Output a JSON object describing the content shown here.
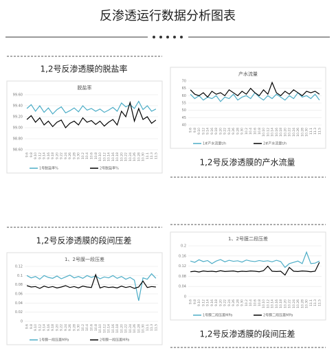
{
  "title": "反渗透运行数据分析图表",
  "sections": [
    {
      "caption": "1,2号反渗透膜的脱盐率"
    },
    {
      "caption": "1,2号反渗透膜的产水流量"
    },
    {
      "caption": "1,2号反渗透膜的段间压差"
    },
    {
      "caption": "1,2号反渗透膜的段间压差"
    }
  ],
  "chart_data": [
    {
      "type": "line",
      "title": "脱盐率",
      "legend": "bottom",
      "grid": true,
      "categories": [
        "9.6",
        "9.8",
        "9.10",
        "9.12",
        "9.14",
        "9.16",
        "9.18",
        "9.20",
        "9.22",
        "9.24",
        "9.26",
        "9.28",
        "9.30",
        "10.2",
        "10.4",
        "10.6",
        "10.8",
        "10.10",
        "10.12",
        "10.14",
        "10.16",
        "10.18",
        "10.20",
        "10.22",
        "10.24",
        "10.26",
        "10.28",
        "10.30",
        "11.1",
        "11.3",
        "11.5"
      ],
      "ylim": [
        98.6,
        99.6
      ],
      "yticks": [
        {
          "value": 98.6,
          "label": "98.60"
        },
        {
          "value": 98.8,
          "label": "98.80"
        },
        {
          "value": 99.0,
          "label": "99.00"
        },
        {
          "value": 99.2,
          "label": "99.20"
        },
        {
          "value": 99.4,
          "label": "99.40"
        },
        {
          "value": 99.6,
          "label": "99.60"
        }
      ],
      "series": [
        {
          "name": "1号脱盐率%",
          "color": "#4bacc6",
          "values": [
            99.35,
            99.42,
            99.3,
            99.4,
            99.28,
            99.36,
            99.25,
            99.33,
            99.38,
            99.27,
            99.31,
            99.36,
            99.29,
            99.4,
            99.32,
            99.35,
            99.3,
            99.34,
            99.28,
            99.32,
            99.37,
            99.3,
            99.45,
            99.38,
            99.42,
            99.35,
            99.48,
            99.33,
            99.4,
            99.3,
            99.34
          ]
        },
        {
          "name": "2号脱盐率%",
          "color": "#000000",
          "values": [
            99.15,
            99.22,
            99.1,
            99.18,
            99.05,
            99.12,
            99.02,
            99.1,
            99.14,
            99.0,
            99.08,
            99.12,
            99.05,
            99.18,
            99.1,
            99.13,
            99.06,
            99.12,
            99.03,
            99.1,
            99.15,
            99.05,
            99.3,
            99.2,
            99.46,
            99.12,
            99.35,
            99.15,
            99.2,
            99.08,
            99.14
          ]
        }
      ]
    },
    {
      "type": "line",
      "title": "产水流量",
      "legend": "bottom",
      "grid": true,
      "categories": [
        "9.6",
        "9.8",
        "9.10",
        "9.12",
        "9.14",
        "9.16",
        "9.18",
        "9.20",
        "9.22",
        "9.24",
        "9.26",
        "9.28",
        "9.30",
        "10.2",
        "10.4",
        "10.6",
        "10.8",
        "10.10",
        "10.12",
        "10.14",
        "10.16",
        "10.18",
        "10.20",
        "10.22",
        "10.24",
        "10.26",
        "10.28",
        "10.30",
        "11.1",
        "11.3",
        "11.5"
      ],
      "ylim": [
        40,
        70
      ],
      "yticks": [
        40,
        45,
        50,
        55,
        60,
        65,
        70
      ],
      "series": [
        {
          "name": "1#产水流量t/h",
          "color": "#4bacc6",
          "values": [
            61,
            58,
            60,
            57,
            59,
            58,
            60,
            56,
            59,
            58,
            61,
            57,
            59,
            60,
            58,
            62,
            59,
            57,
            60,
            58,
            61,
            59,
            57,
            60,
            58,
            62,
            59,
            60,
            58,
            61,
            57
          ]
        },
        {
          "name": "2#产水流量t/h",
          "color": "#000000",
          "values": [
            64,
            61,
            60,
            62,
            59,
            63,
            61,
            62,
            60,
            64,
            62,
            60,
            63,
            61,
            65,
            62,
            60,
            64,
            61,
            69,
            62,
            60,
            63,
            61,
            64,
            62,
            60,
            63,
            62,
            63,
            61
          ]
        }
      ]
    },
    {
      "type": "line",
      "title": "1、2号膜一段压差",
      "legend": "bottom",
      "grid": true,
      "categories": [
        "9.6",
        "9.8",
        "9.10",
        "9.12",
        "9.14",
        "9.16",
        "9.18",
        "9.20",
        "9.22",
        "9.24",
        "9.26",
        "9.28",
        "9.30",
        "10.2",
        "10.4",
        "10.6",
        "10.8",
        "10.10",
        "10.12",
        "10.14",
        "10.16",
        "10.18",
        "10.20",
        "10.22",
        "10.24",
        "10.26",
        "10.28",
        "10.30",
        "11.1",
        "11.3",
        "11.5"
      ],
      "ylim": [
        0,
        0.12
      ],
      "yticks": [
        0,
        0.02,
        0.04,
        0.06,
        0.08,
        0.1,
        0.12
      ],
      "series": [
        {
          "name": "1号膜一段压差MPa",
          "color": "#4bacc6",
          "values": [
            0.1,
            0.095,
            0.098,
            0.092,
            0.1,
            0.096,
            0.094,
            0.099,
            0.093,
            0.097,
            0.101,
            0.095,
            0.098,
            0.094,
            0.1,
            0.096,
            0.099,
            0.093,
            0.097,
            0.095,
            0.1,
            0.094,
            0.098,
            0.092,
            0.096,
            0.09,
            0.045,
            0.095,
            0.092,
            0.104,
            0.094
          ]
        },
        {
          "name": "2号膜一段压差MPa",
          "color": "#000000",
          "values": [
            0.078,
            0.075,
            0.076,
            0.072,
            0.077,
            0.074,
            0.076,
            0.073,
            0.075,
            0.078,
            0.074,
            0.076,
            0.073,
            0.077,
            0.075,
            0.074,
            0.102,
            0.073,
            0.076,
            0.074,
            0.075,
            0.073,
            0.077,
            0.074,
            0.076,
            0.072,
            0.075,
            0.088,
            0.074,
            0.076,
            0.075
          ]
        }
      ]
    },
    {
      "type": "line",
      "title": "1、2号膜二段压差",
      "legend": "bottom",
      "grid": true,
      "categories": [
        "9.6",
        "9.8",
        "9.10",
        "9.12",
        "9.14",
        "9.16",
        "9.18",
        "9.20",
        "9.22",
        "9.24",
        "9.26",
        "9.28",
        "9.30",
        "10.2",
        "10.4",
        "10.6",
        "10.8",
        "10.10",
        "10.12",
        "10.14",
        "10.16",
        "10.18",
        "10.20",
        "10.22",
        "10.24",
        "10.26",
        "10.28",
        "10.30",
        "11.1",
        "11.3",
        "11.5"
      ],
      "ylim": [
        0,
        0.2
      ],
      "yticks": [
        0,
        0.04,
        0.08,
        0.12,
        0.16,
        0.2
      ],
      "series": [
        {
          "name": "1号膜二段压差MPa",
          "color": "#4bacc6",
          "values": [
            0.14,
            0.135,
            0.145,
            0.138,
            0.142,
            0.13,
            0.14,
            0.146,
            0.137,
            0.143,
            0.139,
            0.141,
            0.136,
            0.144,
            0.14,
            0.138,
            0.142,
            0.139,
            0.141,
            0.137,
            0.143,
            0.138,
            0.115,
            0.13,
            0.135,
            0.14,
            0.13,
            0.175,
            0.13,
            0.132,
            0.14
          ]
        },
        {
          "name": "2号膜二段压差MPa",
          "color": "#000000",
          "values": [
            0.098,
            0.1,
            0.097,
            0.101,
            0.099,
            0.1,
            0.098,
            0.102,
            0.099,
            0.1,
            0.101,
            0.098,
            0.1,
            0.099,
            0.101,
            0.1,
            0.098,
            0.102,
            0.12,
            0.1,
            0.099,
            0.1,
            0.085,
            0.115,
            0.1,
            0.099,
            0.101,
            0.1,
            0.098,
            0.1,
            0.135
          ]
        }
      ]
    }
  ]
}
